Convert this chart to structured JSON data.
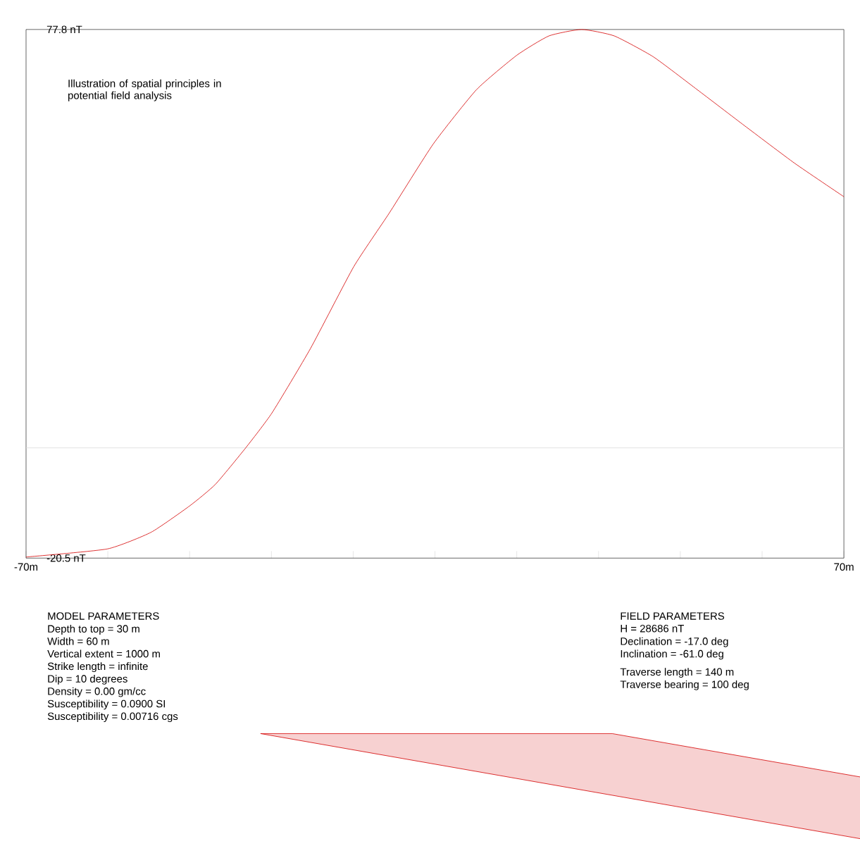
{
  "chart_data": {
    "type": "line",
    "subtitle": "Illustration of spatial principles in potential field analysis",
    "x": [
      -70,
      -56.1,
      -48.6,
      -42.0,
      -37.6,
      -32.4,
      -27.9,
      -21.3,
      -13.9,
      -7.8,
      -0.3,
      7.1,
      14.0,
      19.5,
      25.1,
      30.7,
      37.4,
      44.9,
      53.0,
      61.6,
      70
    ],
    "series": [
      {
        "color": "#d40000",
        "values": [
          -20.3,
          -18.8,
          -15.7,
          -10.8,
          -6.8,
          0.0,
          6.5,
          18.5,
          33.7,
          43.7,
          56.5,
          66.6,
          73.0,
          76.6,
          77.8,
          76.6,
          72.7,
          66.6,
          59.9,
          52.9,
          46.7
        ]
      }
    ],
    "xlim": [
      -70,
      70
    ],
    "xticks": [
      {
        "value": -70,
        "label": "-70m"
      },
      {
        "value": -56,
        "label": null
      },
      {
        "value": -42,
        "label": null
      },
      {
        "value": -28,
        "label": null
      },
      {
        "value": -14,
        "label": null
      },
      {
        "value": 0,
        "label": null
      },
      {
        "value": 14,
        "label": null
      },
      {
        "value": 28,
        "label": null
      },
      {
        "value": 42,
        "label": null
      },
      {
        "value": 56,
        "label": null
      },
      {
        "value": 70,
        "label": "70m"
      }
    ],
    "ylim": [
      -20.5,
      77.8
    ],
    "yticks": [
      {
        "value": -20.5,
        "label": "-20.5 nT"
      },
      {
        "value": 77.8,
        "label": "77.8 nT"
      }
    ],
    "ref_lines": [
      {
        "axis": "y",
        "value": 0,
        "color": "#d9d9d9"
      }
    ],
    "grid": false,
    "marker": "none",
    "line_style": "solid",
    "annotations": [
      "MODEL PARAMETERS",
      "Depth to top = 30 m",
      "Width = 60 m",
      "Vertical extent = 1000 m",
      "Strike length = infinite",
      "Dip = 10 degrees",
      "Density = 0.00 gm/cc",
      "Susceptibility = 0.0900 SI",
      "Susceptibility = 0.00716 cgs",
      "FIELD PARAMETERS",
      "H = 28686 nT",
      "Declination = -17.0 deg",
      "Inclination = -61.0 deg",
      "Traverse length = 140 m",
      "Traverse bearing = 100 deg"
    ]
  }
}
